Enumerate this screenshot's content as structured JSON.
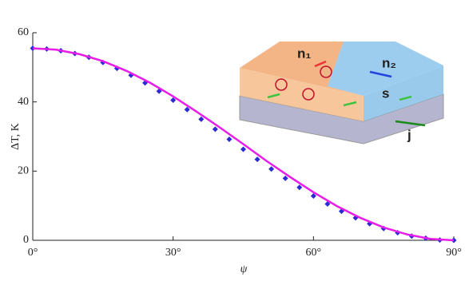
{
  "chart_data": {
    "type": "line",
    "ylabel": "ΔT, K",
    "xlabel": "ψ",
    "xlim": [
      0,
      90
    ],
    "ylim": [
      0,
      60
    ],
    "xticks": [
      {
        "value": 0,
        "label": "0°"
      },
      {
        "value": 30,
        "label": "30°"
      },
      {
        "value": 60,
        "label": "60°"
      },
      {
        "value": 90,
        "label": "90°"
      }
    ],
    "yticks": [
      0,
      20,
      40,
      60
    ],
    "series": [
      {
        "color": "#2b2bd6",
        "marker": "diamond",
        "x": [
          0,
          3,
          6,
          9,
          12,
          15,
          18,
          21,
          24,
          27,
          30,
          33,
          36,
          39,
          42,
          45,
          48,
          51,
          54,
          57,
          60,
          63,
          66,
          69,
          72,
          75,
          78,
          81,
          84,
          87,
          90
        ],
        "values": [
          55.5,
          55.3,
          54.8,
          54.0,
          52.9,
          51.4,
          49.7,
          47.7,
          45.5,
          43.1,
          40.5,
          37.8,
          35.0,
          32.1,
          29.2,
          26.3,
          23.4,
          20.6,
          17.9,
          15.3,
          12.8,
          10.5,
          8.4,
          6.5,
          4.8,
          3.4,
          2.2,
          1.2,
          0.6,
          0.1,
          0
        ]
      },
      {
        "color": "#e81ee8",
        "marker": "none",
        "x": [
          0,
          5,
          10,
          15,
          20,
          25,
          30,
          35,
          40,
          45,
          50,
          55,
          60,
          65,
          70,
          75,
          80,
          85,
          90
        ],
        "values": [
          55.5,
          55.1,
          53.8,
          51.8,
          49.0,
          45.6,
          41.6,
          37.2,
          32.6,
          27.8,
          22.9,
          18.3,
          13.9,
          9.9,
          6.5,
          3.7,
          1.7,
          0.4,
          0
        ]
      }
    ],
    "annotations": [
      "n₁",
      "n₂",
      "s",
      "j"
    ]
  }
}
